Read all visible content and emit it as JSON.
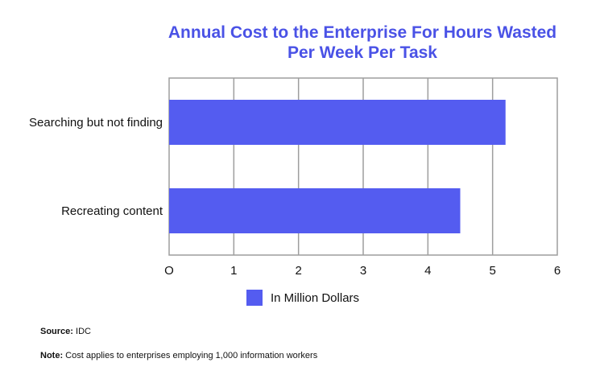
{
  "chart_data": {
    "type": "bar",
    "orientation": "horizontal",
    "title_lines": [
      "Annual Cost to the Enterprise For Hours Wasted",
      "Per Week Per Task"
    ],
    "categories": [
      "Searching but not finding",
      "Recreating content"
    ],
    "series": [
      {
        "name": "In Million Dollars",
        "values": [
          5.2,
          4.5
        ]
      }
    ],
    "xlim": [
      0,
      6
    ],
    "x_ticks": [
      "O",
      "1",
      "2",
      "3",
      "4",
      "5",
      "6"
    ],
    "grid": true,
    "legend_position": "bottom",
    "colors": {
      "bar": "#545cf0",
      "title": "#4a52e6",
      "grid": "#9e9e9e"
    }
  },
  "notes": {
    "source_label": "Source:",
    "source_text": "IDC",
    "note_label": "Note:",
    "note_text": "Cost applies to enterprises employing 1,000 information workers"
  }
}
